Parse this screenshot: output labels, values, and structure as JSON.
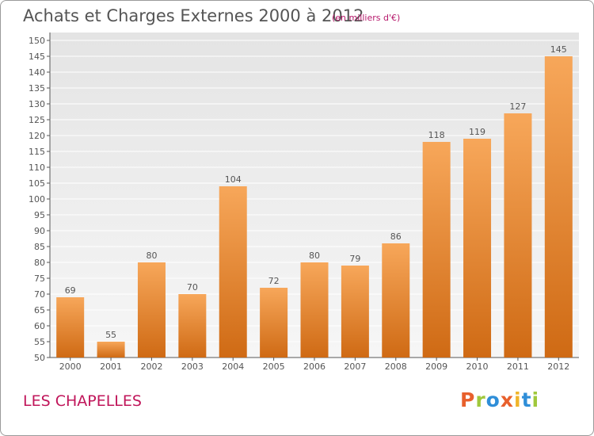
{
  "header": {
    "title": "Achats et Charges Externes 2000 à 2012",
    "subtitle": "(en milliers d'€)"
  },
  "footer": {
    "commune": "LES CHAPELLES",
    "logo_letters": [
      "P",
      "r",
      "o",
      "x",
      "i",
      "t",
      "i"
    ],
    "logo_colors": [
      "#e8602c",
      "#a0c83c",
      "#2f8ed8",
      "#e8602c",
      "#f0b429",
      "#2f8ed8",
      "#a0c83c"
    ]
  },
  "colors": {
    "bar_light": "#f7a75a",
    "bar_dark": "#cf6a14",
    "grid": "#dddddd",
    "plot_bg": "#ebebeb"
  },
  "chart_data": {
    "type": "bar",
    "categories": [
      "2000",
      "2001",
      "2002",
      "2003",
      "2004",
      "2005",
      "2006",
      "2007",
      "2008",
      "2009",
      "2010",
      "2011",
      "2012"
    ],
    "values": [
      69,
      55,
      80,
      70,
      104,
      72,
      80,
      79,
      86,
      118,
      119,
      127,
      145
    ],
    "ylim": [
      50,
      150
    ],
    "yticks": [
      50,
      55,
      60,
      65,
      70,
      75,
      80,
      85,
      90,
      95,
      100,
      105,
      110,
      115,
      120,
      125,
      130,
      135,
      140,
      145,
      150
    ],
    "grid": true,
    "legend": "none"
  }
}
